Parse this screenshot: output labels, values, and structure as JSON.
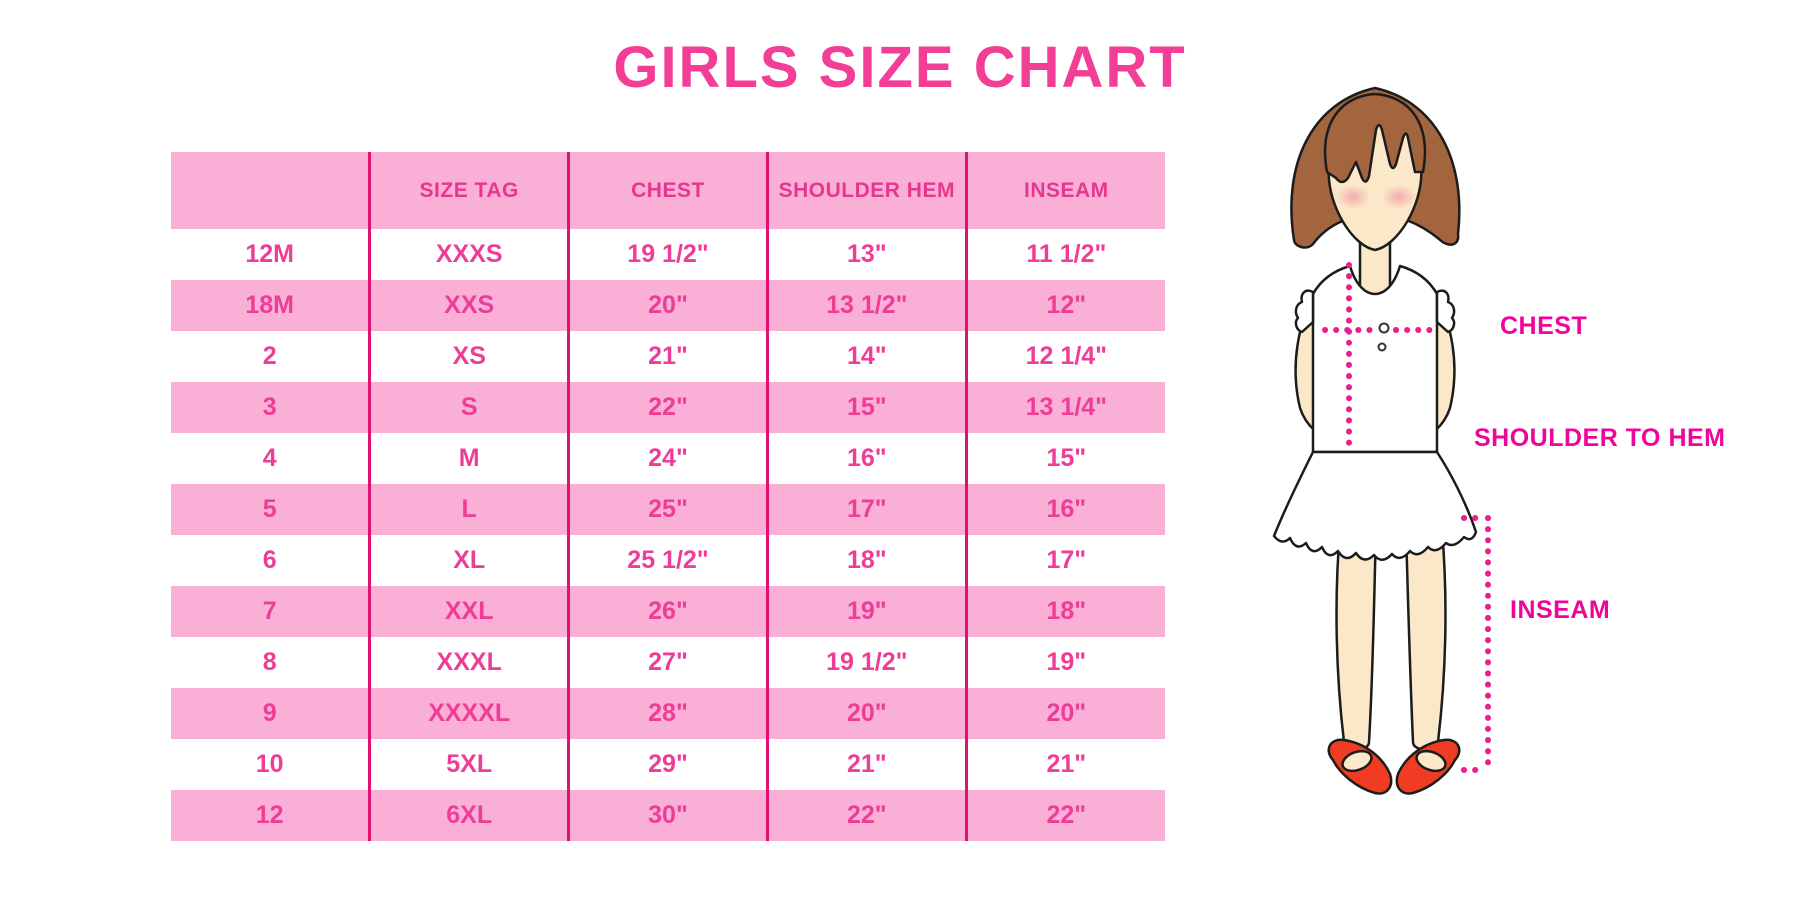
{
  "title": "GIRLS SIZE CHART",
  "chart_data": {
    "type": "table",
    "title": "GIRLS SIZE CHART",
    "columns": [
      "",
      "SIZE TAG",
      "CHEST",
      "SHOULDER HEM",
      "INSEAM"
    ],
    "rows": [
      [
        "12M",
        "XXXS",
        "19 1/2\"",
        "13\"",
        "11 1/2\""
      ],
      [
        "18M",
        "XXS",
        "20\"",
        "13 1/2\"",
        "12\""
      ],
      [
        "2",
        "XS",
        "21\"",
        "14\"",
        "12 1/4\""
      ],
      [
        "3",
        "S",
        "22\"",
        "15\"",
        "13 1/4\""
      ],
      [
        "4",
        "M",
        "24\"",
        "16\"",
        "15\""
      ],
      [
        "5",
        "L",
        "25\"",
        "17\"",
        "16\""
      ],
      [
        "6",
        "XL",
        "25 1/2\"",
        "18\"",
        "17\""
      ],
      [
        "7",
        "XXL",
        "26\"",
        "19\"",
        "18\""
      ],
      [
        "8",
        "XXXL",
        "27\"",
        "19 1/2\"",
        "19\""
      ],
      [
        "9",
        "XXXXL",
        "28\"",
        "20\"",
        "20\""
      ],
      [
        "10",
        "5XL",
        "29\"",
        "21\"",
        "21\""
      ],
      [
        "12",
        "6XL",
        "30\"",
        "22\"",
        "22\""
      ]
    ],
    "layout": {
      "row_striping": "white and pink alternating",
      "legend_position": "none",
      "grid": "vertical magenta dividers only"
    }
  },
  "diagram": {
    "description": "illustrated girl with measurement guide lines",
    "labels": {
      "chest": "CHEST",
      "shoulder_to_hem": "SHOULDER TO HEM",
      "inseam": "INSEAM"
    }
  },
  "colors": {
    "title-pink": "#F23E96",
    "row-pink": "#F9AFD6",
    "text-pink": "#EE3D96",
    "divider": "#DF1272",
    "label-magenta": "#F0059A",
    "dotted": "#EA1E8C",
    "hair": "#A2653E",
    "skin": "#FAE8C8",
    "shoe": "#EF3C22",
    "outline": "#1C1C1C"
  }
}
